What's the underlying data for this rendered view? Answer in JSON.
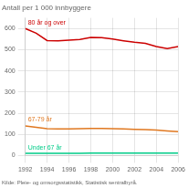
{
  "chart_data": {
    "type": "line",
    "title": "Antall per 1 000 innbyggere",
    "annotations": [
      "Kilde: Pleie- og omsorgsstatistikk, Statistisk sentralbyrå."
    ],
    "x": [
      1992,
      1993,
      1994,
      1995,
      1996,
      1997,
      1998,
      1999,
      2000,
      2001,
      2002,
      2003,
      2004,
      2005,
      2006
    ],
    "series": [
      {
        "name": "80 år og over",
        "color": "#cc0000",
        "values": [
          600,
          578,
          543,
          542,
          545,
          548,
          558,
          557,
          550,
          542,
          535,
          530,
          515,
          505,
          515
        ]
      },
      {
        "name": "67-79 år",
        "color": "#e07820",
        "values": [
          140,
          133,
          127,
          126,
          126,
          127,
          128,
          128,
          127,
          126,
          124,
          122,
          120,
          116,
          113
        ]
      },
      {
        "name": "Under 67 år",
        "color": "#00cc88",
        "values": [
          10,
          10,
          10,
          10,
          10,
          10,
          11,
          11,
          11,
          11,
          11,
          11,
          11,
          11,
          11
        ]
      }
    ],
    "xlim": [
      1992,
      2006
    ],
    "xticks": [
      1992,
      1994,
      1996,
      1998,
      2000,
      2002,
      2004,
      2006
    ],
    "ylim": [
      0,
      650
    ],
    "yticks": [
      0,
      100,
      200,
      300,
      400,
      500,
      600
    ],
    "grid": true
  }
}
